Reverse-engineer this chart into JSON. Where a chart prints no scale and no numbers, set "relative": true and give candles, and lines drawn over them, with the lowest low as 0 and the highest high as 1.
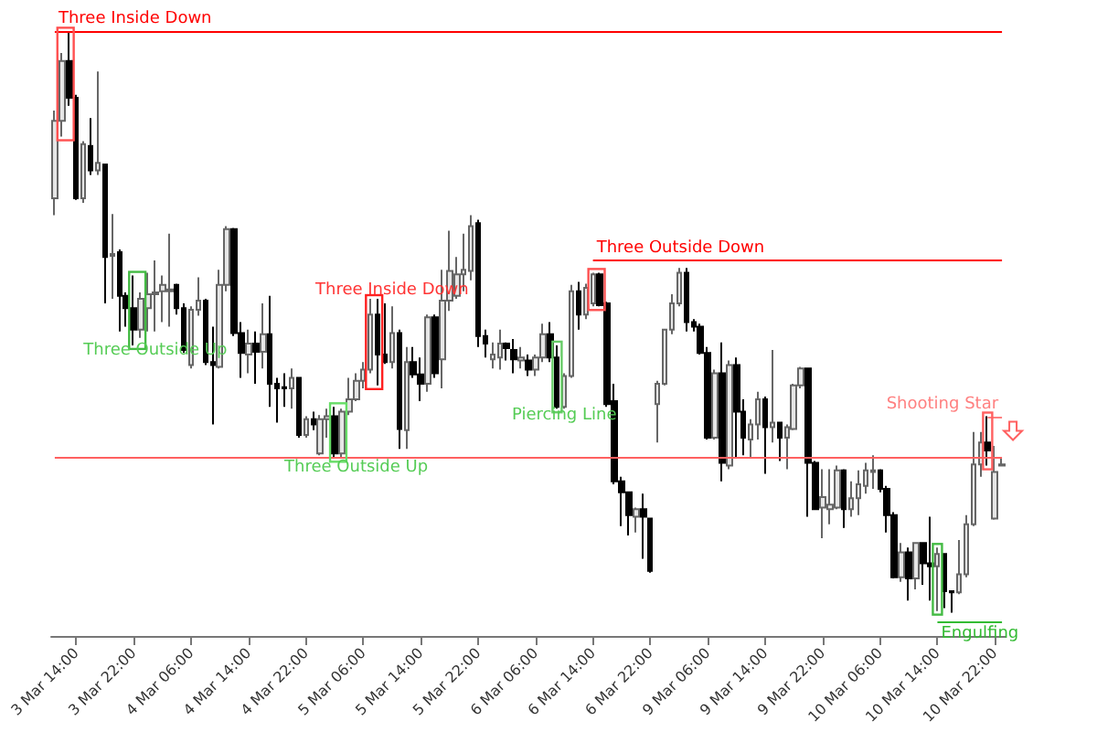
{
  "chart_data": {
    "type": "candlestick",
    "relative": true,
    "tick_labels": "x",
    "grid": false,
    "categories": [
      null,
      null,
      null,
      "3 Mar 14:00",
      null,
      null,
      null,
      null,
      null,
      null,
      null,
      "3 Mar 22:00",
      null,
      null,
      null,
      null,
      null,
      null,
      null,
      "4 Mar 06:00",
      null,
      null,
      null,
      null,
      null,
      null,
      null,
      "4 Mar 14:00",
      null,
      null,
      null,
      null,
      null,
      null,
      null,
      "4 Mar 22:00",
      null,
      null,
      null,
      null,
      null,
      null,
      null,
      "5 Mar 06:00",
      null,
      null,
      null,
      null,
      null,
      null,
      null,
      "5 Mar 14:00",
      null,
      null,
      null,
      null,
      null,
      null,
      null,
      "5 Mar 22:00",
      null,
      null,
      null,
      null,
      null,
      null,
      null,
      "6 Mar 06:00",
      null,
      null,
      null,
      null,
      null,
      null,
      null,
      "6 Mar 14:00",
      null,
      null,
      null,
      null,
      null,
      null,
      null,
      "6 Mar 22:00",
      null,
      null,
      null,
      null,
      null,
      null,
      null,
      "9 Mar 06:00",
      null,
      null,
      null,
      null,
      null,
      null,
      null,
      "9 Mar 14:00",
      null,
      null,
      null,
      null,
      null,
      null,
      null,
      "9 Mar 22:00",
      null,
      null,
      null,
      null,
      null,
      null,
      null,
      "10 Mar 06:00",
      null,
      null,
      null,
      null,
      null,
      null,
      null,
      "10 Mar 14:00",
      null,
      null,
      null,
      null,
      null,
      null,
      null,
      "10 Mar 22:00",
      null
    ],
    "ohlc": [
      [
        0.713,
        0.864,
        0.684,
        0.846
      ],
      [
        0.846,
        0.963,
        0.819,
        0.949
      ],
      [
        0.949,
        1.0,
        0.872,
        0.886
      ],
      [
        0.886,
        0.891,
        0.71,
        0.713
      ],
      [
        0.713,
        0.811,
        0.705,
        0.806
      ],
      [
        0.803,
        0.851,
        0.753,
        0.761
      ],
      [
        0.761,
        0.931,
        0.753,
        0.774
      ],
      [
        0.771,
        0.771,
        0.532,
        0.612
      ],
      [
        0.614,
        0.686,
        0.54,
        0.617
      ],
      [
        0.62,
        0.625,
        0.484,
        0.545
      ],
      [
        0.545,
        0.551,
        0.492,
        0.524
      ],
      [
        0.524,
        0.58,
        0.46,
        0.487
      ],
      [
        0.487,
        0.551,
        0.473,
        0.54
      ],
      [
        0.524,
        0.585,
        0.484,
        0.548
      ],
      [
        0.548,
        0.606,
        0.484,
        0.551
      ],
      [
        0.553,
        0.58,
        0.5,
        0.564
      ],
      [
        0.553,
        0.652,
        0.492,
        0.556
      ],
      [
        0.564,
        0.566,
        0.513,
        0.524
      ],
      [
        0.524,
        0.532,
        0.447,
        0.452
      ],
      [
        0.426,
        0.527,
        0.42,
        0.521
      ],
      [
        0.521,
        0.577,
        0.511,
        0.537
      ],
      [
        0.537,
        0.54,
        0.426,
        0.431
      ],
      [
        0.431,
        0.492,
        0.324,
        0.426
      ],
      [
        0.423,
        0.59,
        0.42,
        0.564
      ],
      [
        0.564,
        0.665,
        0.553,
        0.66
      ],
      [
        0.66,
        0.662,
        0.476,
        0.481
      ],
      [
        0.481,
        0.5,
        0.404,
        0.447
      ],
      [
        0.444,
        0.487,
        0.412,
        0.463
      ],
      [
        0.463,
        0.484,
        0.394,
        0.449
      ],
      [
        0.449,
        0.532,
        0.42,
        0.479
      ],
      [
        0.479,
        0.545,
        0.354,
        0.394
      ],
      [
        0.394,
        0.404,
        0.327,
        0.386
      ],
      [
        0.388,
        0.412,
        0.354,
        0.386
      ],
      [
        0.386,
        0.42,
        0.351,
        0.404
      ],
      [
        0.404,
        0.404,
        0.301,
        0.306
      ],
      [
        0.306,
        0.338,
        0.301,
        0.333
      ],
      [
        0.333,
        0.346,
        0.314,
        0.324
      ],
      [
        0.274,
        0.34,
        0.271,
        0.333
      ],
      [
        0.333,
        0.351,
        0.301,
        0.338
      ],
      [
        0.338,
        0.354,
        0.266,
        0.274
      ],
      [
        0.274,
        0.351,
        0.266,
        0.346
      ],
      [
        0.346,
        0.404,
        0.34,
        0.367
      ],
      [
        0.367,
        0.412,
        0.364,
        0.399
      ],
      [
        0.399,
        0.431,
        0.386,
        0.418
      ],
      [
        0.418,
        0.54,
        0.412,
        0.513
      ],
      [
        0.513,
        0.54,
        0.391,
        0.444
      ],
      [
        0.444,
        0.532,
        0.428,
        0.431
      ],
      [
        0.431,
        0.527,
        0.42,
        0.481
      ],
      [
        0.481,
        0.487,
        0.282,
        0.316
      ],
      [
        0.314,
        0.457,
        0.282,
        0.431
      ],
      [
        0.431,
        0.457,
        0.404,
        0.41
      ],
      [
        0.41,
        0.439,
        0.364,
        0.394
      ],
      [
        0.394,
        0.513,
        0.38,
        0.508
      ],
      [
        0.508,
        0.513,
        0.404,
        0.412
      ],
      [
        0.436,
        0.59,
        0.386,
        0.537
      ],
      [
        0.537,
        0.657,
        0.519,
        0.588
      ],
      [
        0.545,
        0.612,
        0.54,
        0.582
      ],
      [
        0.582,
        0.652,
        0.553,
        0.59
      ],
      [
        0.588,
        0.684,
        0.572,
        0.665
      ],
      [
        0.67,
        0.676,
        0.457,
        0.476
      ],
      [
        0.476,
        0.487,
        0.439,
        0.463
      ],
      [
        0.436,
        0.465,
        0.42,
        0.444
      ],
      [
        0.439,
        0.487,
        0.418,
        0.463
      ],
      [
        0.463,
        0.465,
        0.434,
        0.455
      ],
      [
        0.452,
        0.471,
        0.412,
        0.436
      ],
      [
        0.434,
        0.457,
        0.42,
        0.439
      ],
      [
        0.434,
        0.444,
        0.407,
        0.418
      ],
      [
        0.418,
        0.444,
        0.407,
        0.439
      ],
      [
        0.439,
        0.497,
        0.431,
        0.479
      ],
      [
        0.479,
        0.5,
        0.431,
        0.439
      ],
      [
        0.439,
        0.46,
        0.351,
        0.354
      ],
      [
        0.354,
        0.412,
        0.351,
        0.407
      ],
      [
        0.407,
        0.564,
        0.404,
        0.553
      ],
      [
        0.553,
        0.569,
        0.487,
        0.513
      ],
      [
        0.513,
        0.566,
        0.505,
        0.559
      ],
      [
        0.532,
        0.585,
        0.527,
        0.582
      ],
      [
        0.582,
        0.585,
        0.527,
        0.529
      ],
      [
        0.532,
        0.535,
        0.354,
        0.359
      ],
      [
        0.364,
        0.394,
        0.221,
        0.226
      ],
      [
        0.226,
        0.234,
        0.149,
        0.207
      ],
      [
        0.207,
        0.207,
        0.133,
        0.168
      ],
      [
        0.165,
        0.181,
        0.138,
        0.178
      ],
      [
        0.178,
        0.205,
        0.093,
        0.165
      ],
      [
        0.162,
        0.162,
        0.069,
        0.072
      ],
      [
        0.359,
        0.399,
        0.293,
        0.394
      ],
      [
        0.394,
        0.487,
        0.391,
        0.487
      ],
      [
        0.487,
        0.548,
        0.479,
        0.532
      ],
      [
        0.532,
        0.593,
        0.527,
        0.585
      ],
      [
        0.585,
        0.593,
        0.484,
        0.5
      ],
      [
        0.5,
        0.505,
        0.484,
        0.492
      ],
      [
        0.492,
        0.497,
        0.444,
        0.447
      ],
      [
        0.447,
        0.457,
        0.298,
        0.301
      ],
      [
        0.301,
        0.418,
        0.298,
        0.412
      ],
      [
        0.412,
        0.465,
        0.226,
        0.258
      ],
      [
        0.253,
        0.434,
        0.247,
        0.426
      ],
      [
        0.426,
        0.439,
        0.266,
        0.346
      ],
      [
        0.346,
        0.367,
        0.271,
        0.301
      ],
      [
        0.298,
        0.333,
        0.266,
        0.324
      ],
      [
        0.324,
        0.38,
        0.298,
        0.367
      ],
      [
        0.367,
        0.372,
        0.239,
        0.319
      ],
      [
        0.319,
        0.452,
        0.293,
        0.327
      ],
      [
        0.327,
        0.327,
        0.261,
        0.301
      ],
      [
        0.301,
        0.324,
        0.247,
        0.319
      ],
      [
        0.316,
        0.394,
        0.314,
        0.391
      ],
      [
        0.391,
        0.423,
        0.386,
        0.42
      ],
      [
        0.42,
        0.42,
        0.165,
        0.258
      ],
      [
        0.258,
        0.261,
        0.178,
        0.178
      ],
      [
        0.181,
        0.247,
        0.128,
        0.199
      ],
      [
        0.178,
        0.247,
        0.152,
        0.186
      ],
      [
        0.181,
        0.253,
        0.178,
        0.245
      ],
      [
        0.245,
        0.247,
        0.146,
        0.178
      ],
      [
        0.178,
        0.226,
        0.165,
        0.197
      ],
      [
        0.197,
        0.245,
        0.168,
        0.221
      ],
      [
        0.218,
        0.258,
        0.205,
        0.245
      ],
      [
        0.242,
        0.271,
        0.213,
        0.245
      ],
      [
        0.245,
        0.247,
        0.207,
        0.213
      ],
      [
        0.213,
        0.218,
        0.138,
        0.168
      ],
      [
        0.168,
        0.173,
        0.059,
        0.061
      ],
      [
        0.061,
        0.12,
        0.053,
        0.104
      ],
      [
        0.104,
        0.112,
        0.021,
        0.059
      ],
      [
        0.059,
        0.12,
        0.04,
        0.12
      ],
      [
        0.12,
        0.12,
        0.048,
        0.085
      ],
      [
        0.085,
        0.165,
        0.021,
        0.08
      ],
      [
        0.08,
        0.112,
        0.003,
        0.101
      ],
      [
        0.101,
        0.101,
        0.008,
        0.037
      ],
      [
        0.037,
        0.037,
        0.0,
        0.035
      ],
      [
        0.035,
        0.125,
        0.032,
        0.066
      ],
      [
        0.066,
        0.168,
        0.061,
        0.152
      ],
      [
        0.152,
        0.311,
        0.149,
        0.255
      ],
      [
        0.255,
        0.311,
        0.234,
        0.293
      ],
      [
        0.293,
        0.338,
        0.253,
        0.279
      ],
      [
        0.162,
        0.287,
        0.16,
        0.242
      ],
      [
        0.253,
        0.266,
        0.253,
        0.255
      ]
    ],
    "ref_lines": [
      {
        "axis": "y",
        "value": 1.0,
        "label": "Three Inside Down",
        "color": "#ff0000"
      },
      {
        "axis": "y",
        "value": 0.606,
        "label": "Three Outside Down",
        "color": "#ff0000"
      },
      {
        "axis": "y",
        "value": 0.338,
        "label": "Shooting Star",
        "color": "#ff8080"
      },
      {
        "axis": "y",
        "value": 0.266,
        "color": "#ff6060"
      },
      {
        "axis": "y",
        "value": -0.016,
        "label": "Engulfing",
        "color": "#33bb33"
      }
    ],
    "annotations": [
      "Three Outside Up",
      "Three Inside Down",
      "Three Outside Up",
      "Piercing Line"
    ]
  }
}
